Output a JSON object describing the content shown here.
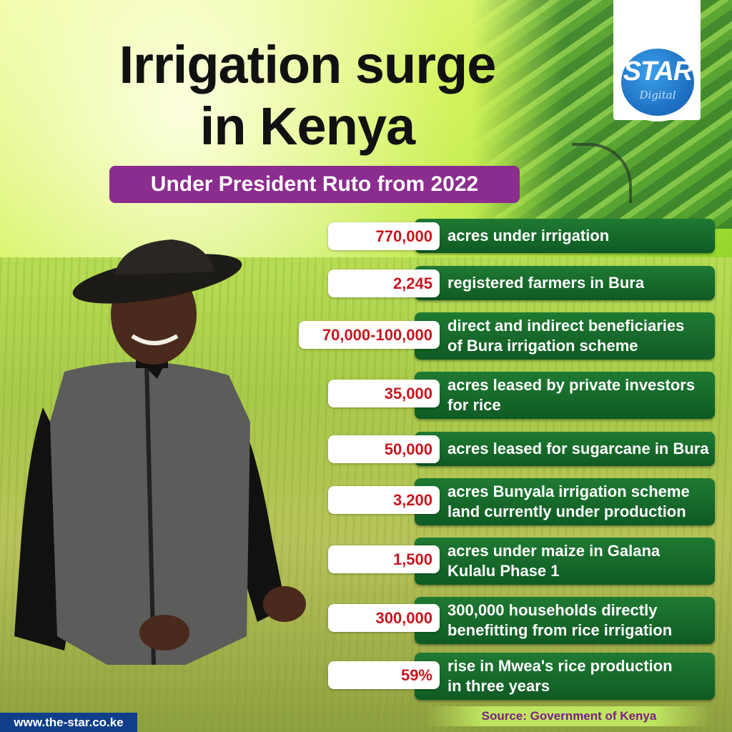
{
  "header": {
    "title_line1": "Irrigation surge",
    "title_line2": "in Kenya",
    "subtitle": "Under President Ruto from 2022"
  },
  "logo": {
    "name": "STAR",
    "sub": "Digital"
  },
  "stats": [
    {
      "value": "770,000",
      "label_line1": "acres under irrigation",
      "label_line2": ""
    },
    {
      "value": "2,245",
      "label_line1": "registered farmers in Bura",
      "label_line2": ""
    },
    {
      "value": "70,000-100,000",
      "label_line1": "direct and indirect beneficiaries",
      "label_line2": "of Bura irrigation scheme"
    },
    {
      "value": "35,000",
      "label_line1": "acres leased by private investors",
      "label_line2": "for rice"
    },
    {
      "value": "50,000",
      "label_line1": "acres leased for sugarcane in Bura",
      "label_line2": ""
    },
    {
      "value": "3,200",
      "label_line1": "acres Bunyala irrigation scheme",
      "label_line2": "land currently under production"
    },
    {
      "value": "1,500",
      "label_line1": "acres under maize in Galana",
      "label_line2": "Kulalu Phase 1"
    },
    {
      "value": "300,000",
      "label_line1": "300,000 households directly",
      "label_line2": "benefitting from rice irrigation"
    },
    {
      "value": "59%",
      "label_line1": "rise in Mwea's rice production",
      "label_line2": "in three years"
    }
  ],
  "footer": {
    "url": "www.the-star.co.ke",
    "source": "Source: Government of Kenya"
  },
  "colors": {
    "title": "#111111",
    "subtitle_bg": "#8b2c8f",
    "stat_green": "#1a6e2d",
    "stat_value": "#c8161d",
    "source_text": "#7a1f86",
    "url_bg": "#0f3f8a"
  }
}
